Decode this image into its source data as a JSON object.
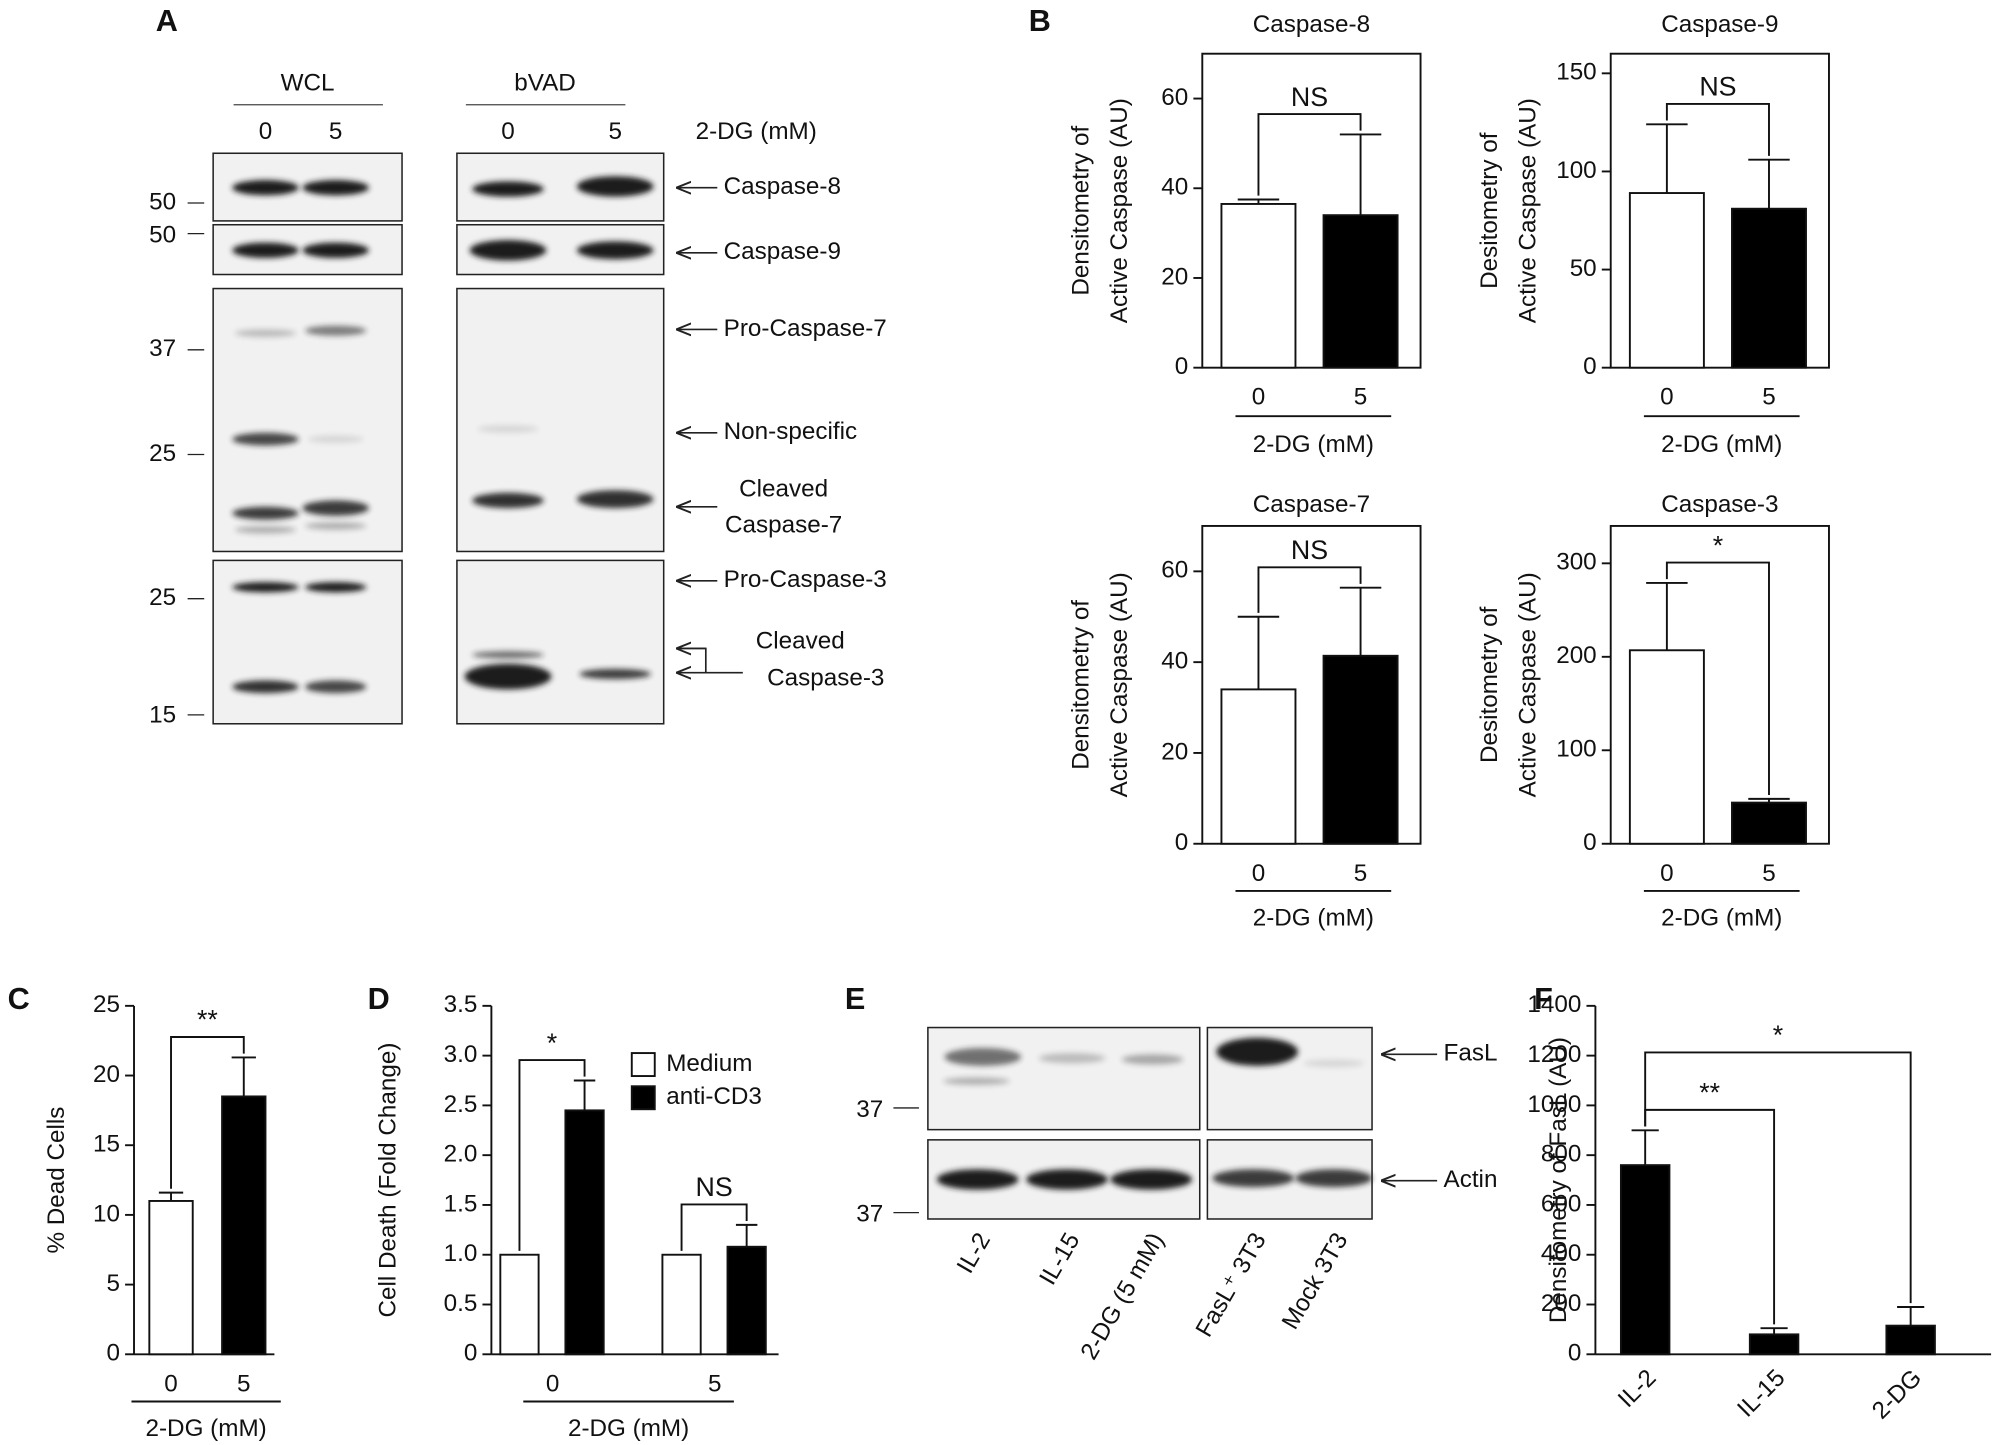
{
  "figure": {
    "panel_labels": [
      "A",
      "B",
      "C",
      "D",
      "E",
      "F"
    ]
  },
  "blot_a": {
    "groups": [
      "WCL",
      "bVAD"
    ],
    "lanes": [
      "0",
      "5",
      "0",
      "5"
    ],
    "treatment": "2-DG (mM)",
    "markers": [
      50,
      50,
      37,
      25,
      25,
      15
    ],
    "bands": [
      "Caspase-8",
      "Caspase-9",
      "Pro-Caspase-7",
      "Non-specific",
      [
        "Cleaved",
        "Caspase-7"
      ],
      "Pro-Caspase-3",
      [
        "Cleaved",
        "Caspase-3"
      ]
    ]
  },
  "blot_e": {
    "markers": [
      37,
      37
    ],
    "bands": [
      "FasL",
      "Actin"
    ],
    "lanes": [
      "IL-2",
      "IL-15",
      "2-DG (5 mM)",
      "FasL⁺ 3T3",
      "Mock 3T3"
    ]
  },
  "chart_data": [
    {
      "type": "bar",
      "title": "Caspase-8",
      "categories": [
        "0",
        "5"
      ],
      "values": [
        36.5,
        34
      ],
      "errors": [
        1,
        18
      ],
      "colors": [
        "#ffffff",
        "#000000"
      ],
      "xlabel": "2-DG (mM)",
      "ylabel": [
        "Densitometry of",
        "Active Caspase (AU)"
      ],
      "ylim": [
        0,
        70
      ],
      "yticks": [
        0,
        20,
        40,
        60
      ],
      "frame": true,
      "annotations": [
        {
          "text": "NS",
          "between": [
            0,
            1
          ]
        }
      ]
    },
    {
      "type": "bar",
      "title": "Caspase-9",
      "categories": [
        "0",
        "5"
      ],
      "values": [
        89,
        81
      ],
      "errors": [
        35,
        25
      ],
      "colors": [
        "#ffffff",
        "#000000"
      ],
      "xlabel": "2-DG (mM)",
      "ylabel": [
        "Desitometry of",
        "Active Caspase (AU)"
      ],
      "ylim": [
        0,
        160
      ],
      "yticks": [
        0,
        50,
        100,
        150
      ],
      "frame": true,
      "annotations": [
        {
          "text": "NS",
          "between": [
            0,
            1
          ]
        }
      ]
    },
    {
      "type": "bar",
      "title": "Caspase-7",
      "categories": [
        "0",
        "5"
      ],
      "values": [
        34,
        41.4
      ],
      "errors": [
        16,
        15
      ],
      "colors": [
        "#ffffff",
        "#000000"
      ],
      "xlabel": "2-DG (mM)",
      "ylabel": [
        "Densitometry of",
        "Active Caspase (AU)"
      ],
      "ylim": [
        0,
        70
      ],
      "yticks": [
        0,
        20,
        40,
        60
      ],
      "frame": true,
      "annotations": [
        {
          "text": "NS",
          "between": [
            0,
            1
          ]
        }
      ]
    },
    {
      "type": "bar",
      "title": "Caspase-3",
      "categories": [
        "0",
        "5"
      ],
      "values": [
        207,
        44
      ],
      "errors": [
        72,
        4
      ],
      "colors": [
        "#ffffff",
        "#000000"
      ],
      "xlabel": "2-DG (mM)",
      "ylabel": [
        "Desitometry of",
        "Active Caspase (AU)"
      ],
      "ylim": [
        0,
        340
      ],
      "yticks": [
        0,
        100,
        200,
        300
      ],
      "frame": true,
      "annotations": [
        {
          "text": "*",
          "between": [
            0,
            1
          ]
        }
      ]
    },
    {
      "type": "bar",
      "categories": [
        "0",
        "5"
      ],
      "values": [
        11,
        18.5
      ],
      "errors": [
        0.6,
        2.8
      ],
      "colors": [
        "#ffffff",
        "#000000"
      ],
      "xlabel": "2-DG (mM)",
      "ylabel": "% Dead Cells",
      "ylim": [
        0,
        25
      ],
      "yticks": [
        0,
        5,
        10,
        15,
        20,
        25
      ],
      "frame": false,
      "annotations": [
        {
          "text": "**",
          "between": [
            0,
            1
          ]
        }
      ]
    },
    {
      "type": "bar",
      "categories": [
        "0",
        "5"
      ],
      "series": [
        {
          "name": "Medium",
          "color": "#ffffff",
          "values": [
            1,
            1
          ]
        },
        {
          "name": "anti-CD3",
          "color": "#000000",
          "values": [
            2.45,
            1.08
          ],
          "errors": [
            0.3,
            0.22
          ]
        }
      ],
      "xlabel": "2-DG (mM)",
      "ylabel": "Cell Death (Fold Change)",
      "ylim": [
        0,
        3.5
      ],
      "yticks": [
        0,
        0.5,
        {
          "value": 1,
          "label": "1.0"
        },
        1.5,
        {
          "value": 2,
          "label": "2.0"
        },
        2.5,
        {
          "value": 3,
          "label": "3.0"
        },
        3.5
      ],
      "frame": false,
      "legend": "upper right",
      "annotations": [
        {
          "text": "*",
          "group": 0
        },
        {
          "text": "NS",
          "group": 1
        }
      ]
    },
    {
      "type": "bar",
      "categories": [
        "IL-2",
        "IL-15",
        "2-DG"
      ],
      "values": [
        760,
        80,
        115
      ],
      "errors": [
        140,
        25,
        75
      ],
      "color": "#000000",
      "ylabel": "Densitometry of FasL (AU)",
      "ylim": [
        0,
        1400
      ],
      "yticks": [
        0,
        200,
        400,
        600,
        800,
        1000,
        1200,
        1400
      ],
      "frame": false,
      "annotations": [
        {
          "text": "**",
          "between": [
            0,
            1
          ]
        },
        {
          "text": "*",
          "between": [
            0,
            2
          ]
        }
      ]
    }
  ]
}
